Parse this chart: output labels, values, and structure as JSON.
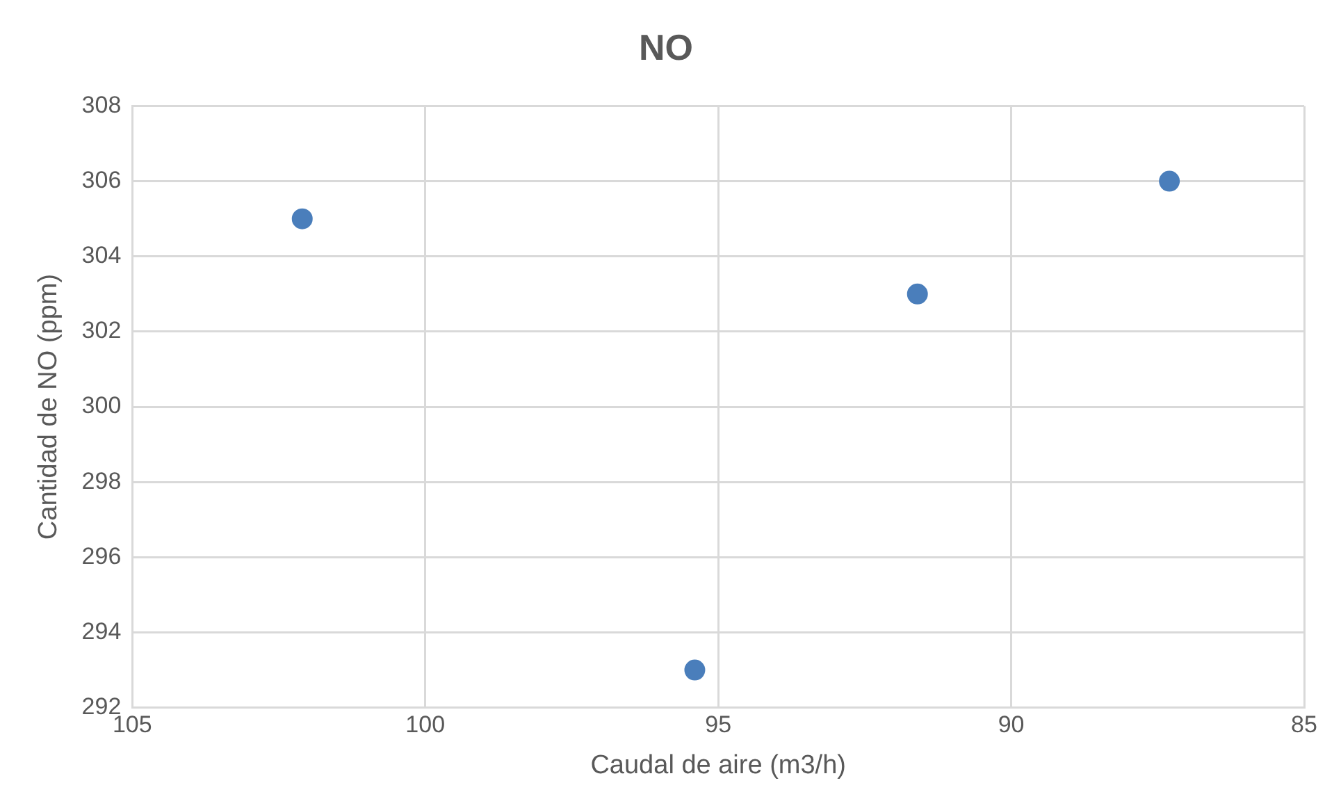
{
  "chart_data": {
    "type": "scatter",
    "title": "NO",
    "xlabel": "Caudal de aire (m3/h)",
    "ylabel": "Cantidad de NO (ppm)",
    "x": [
      102.1,
      95.4,
      91.6,
      87.3
    ],
    "series": [
      {
        "color": "#4a7ebb",
        "values": [
          305,
          293,
          303,
          306
        ]
      }
    ],
    "xlim": [
      105,
      85
    ],
    "xticks": [
      105,
      100,
      95,
      90,
      85
    ],
    "ylim": [
      292,
      308
    ],
    "yticks": [
      292,
      294,
      296,
      298,
      300,
      302,
      304,
      306,
      308
    ],
    "grid": true,
    "marker": "circle",
    "legend": false
  }
}
